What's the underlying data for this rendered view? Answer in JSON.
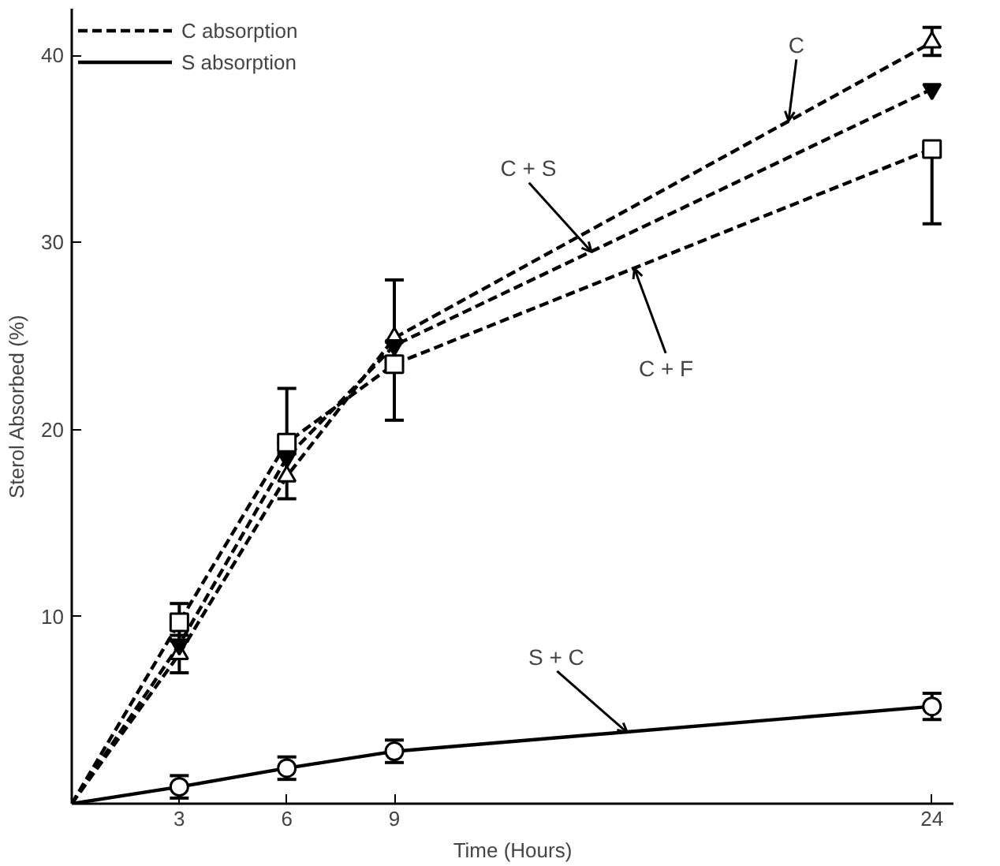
{
  "chart_data": {
    "type": "line",
    "xlabel": "Time (Hours)",
    "ylabel": "Sterol Absorbed (%)",
    "x": [
      0,
      3,
      6,
      9,
      24
    ],
    "xlim": [
      0,
      24.6
    ],
    "ylim": [
      0,
      42.5
    ],
    "xticks": [
      3,
      6,
      9,
      24
    ],
    "yticks": [
      10,
      20,
      30,
      40
    ],
    "grid": false,
    "series": [
      {
        "color": "#000000",
        "line_style": "dashed",
        "marker": "triangle",
        "values": [
          0,
          8.0,
          17.5,
          24.9,
          40.7
        ],
        "errors": [
          null,
          1.0,
          1.2,
          null,
          [
            40.0,
            41.5
          ]
        ]
      },
      {
        "color": "#000000",
        "line_style": "dashed",
        "marker": "triangle",
        "values": [
          0,
          8.5,
          18.5,
          24.5,
          38.2
        ]
      },
      {
        "color": "#000000",
        "line_style": "dashed",
        "marker": "square",
        "values": [
          0,
          9.7,
          19.3,
          23.5,
          35.0
        ],
        "errors": [
          null,
          1.0,
          [
            19.3,
            22.2
          ],
          [
            20.5,
            28.0
          ],
          [
            31.0,
            35.0
          ]
        ]
      },
      {
        "color": "#000000",
        "line_style": "solid",
        "marker": "circle",
        "values": [
          0,
          0.9,
          1.9,
          2.8,
          5.2
        ],
        "errors": [
          null,
          0.6,
          0.6,
          0.6,
          0.7
        ]
      }
    ],
    "annotations": [
      "C absorption",
      "S absorption",
      {
        "text": "C",
        "x": 20.0,
        "y": 36.5
      },
      {
        "text": "C + S",
        "x": 14.5,
        "y": 29.5
      },
      {
        "text": "C + F",
        "x": 15.7,
        "y": 28.6
      },
      {
        "text": "S + C",
        "x": 15.5,
        "y": 3.8
      }
    ]
  }
}
